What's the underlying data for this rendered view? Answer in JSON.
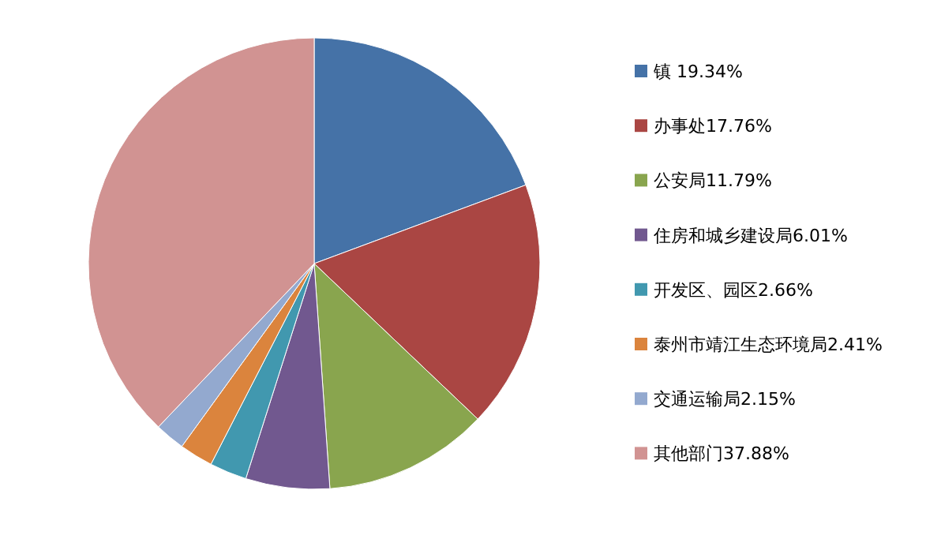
{
  "chart_data": {
    "type": "pie",
    "categories": [
      "镇 19.34%",
      "办事处17.76%",
      "公安局11.79%",
      "住房和城乡建设局6.01%",
      "开发区、园区2.66%",
      "泰州市靖江生态环境局2.41%",
      "交通运输局2.15%",
      "其他部门37.88%"
    ],
    "values": [
      19.34,
      17.76,
      11.79,
      6.01,
      2.66,
      2.41,
      2.15,
      37.88
    ],
    "colors": [
      "#4572a7",
      "#aa4643",
      "#89a54e",
      "#71588f",
      "#4198af",
      "#db843d",
      "#93a9cf",
      "#d19392"
    ],
    "legend": "right"
  }
}
